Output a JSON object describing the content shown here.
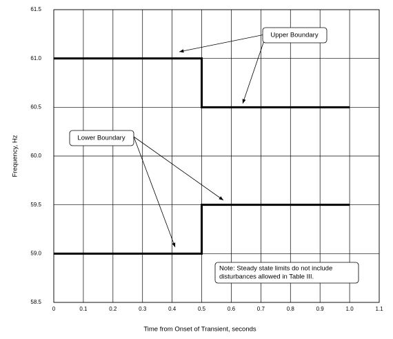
{
  "chart_data": {
    "type": "line",
    "xlabel": "Time from Onset of Transient, seconds",
    "ylabel": "Frequency, Hz",
    "series": [
      {
        "name": "Upper Boundary",
        "color": "#000000",
        "x": [
          0,
          0.5,
          0.5,
          1.0
        ],
        "values": [
          61,
          61,
          60.5,
          60.5
        ]
      },
      {
        "name": "Lower Boundary",
        "color": "#000000",
        "x": [
          0,
          0.5,
          0.5,
          1.0
        ],
        "values": [
          59,
          59,
          59.5,
          59.5
        ]
      }
    ],
    "annotations": [
      "Note: Steady state limits do not include",
      "disturbances allowed in Table III."
    ],
    "xlim": [
      0,
      1.1
    ],
    "xticks": [
      0,
      0.1,
      0.2,
      0.3,
      0.4,
      0.5,
      0.6,
      0.7,
      0.8,
      0.9,
      {
        "value": 1,
        "label": "1.0"
      },
      1.1
    ],
    "ylim": [
      58.5,
      61.5
    ],
    "yticks": [
      58.5,
      {
        "value": 59,
        "label": "59.0"
      },
      59.5,
      {
        "value": 60,
        "label": "60.0"
      },
      60.5,
      {
        "value": 61,
        "label": "61.0"
      },
      61.5
    ],
    "grid": true
  }
}
